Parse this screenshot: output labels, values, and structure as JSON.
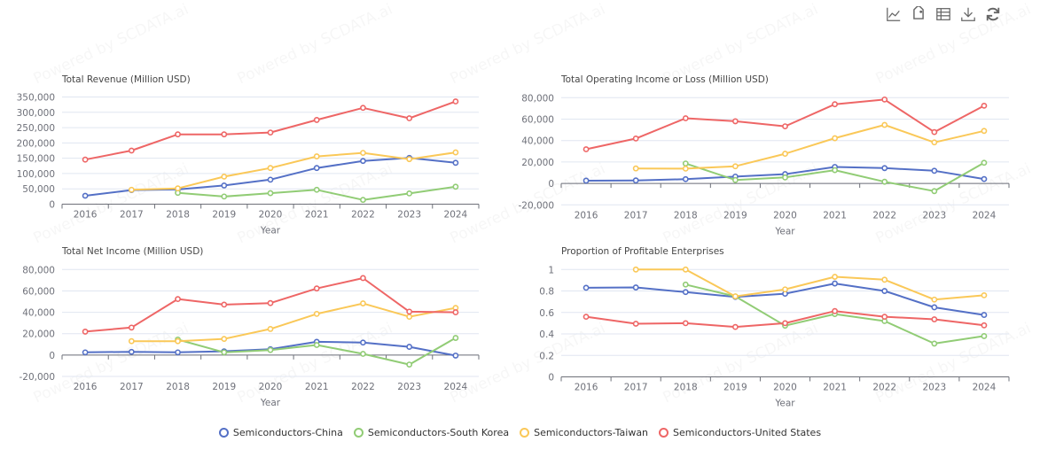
{
  "toolbox": {
    "icons": [
      "line-chart-icon",
      "tag-icon",
      "data-table-icon",
      "download-icon",
      "refresh-icon"
    ]
  },
  "watermark_text": "Powered by SCDATA.ai",
  "legend": [
    {
      "name": "Semiconductors-China",
      "color": "#5470c6"
    },
    {
      "name": "Semiconductors-South Korea",
      "color": "#91cc75"
    },
    {
      "name": "Semiconductors-Taiwan",
      "color": "#fac858"
    },
    {
      "name": "Semiconductors-United States",
      "color": "#ee6666"
    }
  ],
  "chart_data": [
    {
      "type": "line",
      "title": "Total Revenue (Million USD)",
      "xlabel": "Year",
      "ylabel": "",
      "categories": [
        "2016",
        "2017",
        "2018",
        "2019",
        "2020",
        "2021",
        "2022",
        "2023",
        "2024"
      ],
      "ylim": [
        0,
        350000
      ],
      "yticks": [
        0,
        50000,
        100000,
        150000,
        200000,
        250000,
        300000,
        350000
      ],
      "ytick_labels": [
        "0",
        "50,000",
        "100,000",
        "150,000",
        "200,000",
        "250,000",
        "300,000",
        "350,000"
      ],
      "grid": true,
      "series": [
        {
          "name": "Semiconductors-China",
          "values": [
            27500,
            46000,
            48000,
            61000,
            80000,
            118000,
            141000,
            151000,
            135000
          ]
        },
        {
          "name": "Semiconductors-South Korea",
          "values": [
            null,
            null,
            37000,
            25000,
            36000,
            47000,
            14000,
            35000,
            57000
          ]
        },
        {
          "name": "Semiconductors-Taiwan",
          "values": [
            null,
            47000,
            51500,
            90000,
            118000,
            156000,
            167500,
            147000,
            169000
          ]
        },
        {
          "name": "Semiconductors-United States",
          "values": [
            145500,
            175000,
            228000,
            228000,
            234000,
            275000,
            314500,
            280500,
            335500
          ]
        }
      ]
    },
    {
      "type": "line",
      "title": "Total Operating Income or Loss (Million USD)",
      "xlabel": "Year",
      "ylabel": "",
      "categories": [
        "2016",
        "2017",
        "2018",
        "2019",
        "2020",
        "2021",
        "2022",
        "2023",
        "2024"
      ],
      "ylim": [
        -20000,
        80000
      ],
      "yticks": [
        -20000,
        0,
        20000,
        40000,
        60000,
        80000
      ],
      "ytick_labels": [
        "-20,000",
        "0",
        "20,000",
        "40,000",
        "60,000",
        "80,000"
      ],
      "grid": true,
      "series": [
        {
          "name": "Semiconductors-China",
          "values": [
            2600,
            2800,
            4000,
            6400,
            8700,
            15400,
            14300,
            11800,
            4100
          ]
        },
        {
          "name": "Semiconductors-South Korea",
          "values": [
            null,
            null,
            18600,
            3200,
            5600,
            12400,
            1600,
            -7200,
            19300
          ]
        },
        {
          "name": "Semiconductors-Taiwan",
          "values": [
            null,
            14000,
            13800,
            16000,
            27700,
            42200,
            54600,
            38300,
            49000
          ]
        },
        {
          "name": "Semiconductors-United States",
          "values": [
            31900,
            41900,
            60800,
            58000,
            53300,
            73900,
            78300,
            47900,
            72500
          ]
        }
      ]
    },
    {
      "type": "line",
      "title": "Total Net Income (Million USD)",
      "xlabel": "Year",
      "ylabel": "",
      "categories": [
        "2016",
        "2017",
        "2018",
        "2019",
        "2020",
        "2021",
        "2022",
        "2023",
        "2024"
      ],
      "ylim": [
        -20000,
        80000
      ],
      "yticks": [
        -20000,
        0,
        20000,
        40000,
        60000,
        80000
      ],
      "ytick_labels": [
        "-20,000",
        "0",
        "20,000",
        "40,000",
        "60,000",
        "80,000"
      ],
      "grid": true,
      "series": [
        {
          "name": "Semiconductors-China",
          "values": [
            2500,
            3000,
            2500,
            3500,
            5500,
            12400,
            11700,
            7700,
            -500
          ]
        },
        {
          "name": "Semiconductors-South Korea",
          "values": [
            null,
            null,
            14500,
            2500,
            4700,
            9400,
            1100,
            -8900,
            16000
          ]
        },
        {
          "name": "Semiconductors-Taiwan",
          "values": [
            null,
            13000,
            13000,
            15100,
            24400,
            38500,
            48300,
            35800,
            44100
          ]
        },
        {
          "name": "Semiconductors-United States",
          "values": [
            21900,
            25700,
            52400,
            47200,
            48600,
            62300,
            72000,
            40600,
            40000
          ]
        }
      ]
    },
    {
      "type": "line",
      "title": "Proportion of Profitable Enterprises",
      "xlabel": "Year",
      "ylabel": "",
      "categories": [
        "2016",
        "2017",
        "2018",
        "2019",
        "2020",
        "2021",
        "2022",
        "2023",
        "2024"
      ],
      "ylim": [
        0,
        1
      ],
      "yticks": [
        0,
        0.2,
        0.4,
        0.6,
        0.8,
        1
      ],
      "ytick_labels": [
        "0",
        "0.2",
        "0.4",
        "0.6",
        "0.8",
        "1"
      ],
      "grid": true,
      "series": [
        {
          "name": "Semiconductors-China",
          "values": [
            0.83,
            0.833,
            0.79,
            0.745,
            0.775,
            0.87,
            0.8,
            0.648,
            0.577
          ]
        },
        {
          "name": "Semiconductors-South Korea",
          "values": [
            null,
            null,
            0.86,
            0.75,
            0.477,
            0.585,
            0.52,
            0.31,
            0.38
          ]
        },
        {
          "name": "Semiconductors-Taiwan",
          "values": [
            null,
            1.0,
            1.0,
            0.75,
            0.815,
            0.932,
            0.905,
            0.72,
            0.76
          ]
        },
        {
          "name": "Semiconductors-United States",
          "values": [
            0.56,
            0.495,
            0.5,
            0.465,
            0.5,
            0.613,
            0.56,
            0.536,
            0.48
          ]
        }
      ]
    }
  ]
}
